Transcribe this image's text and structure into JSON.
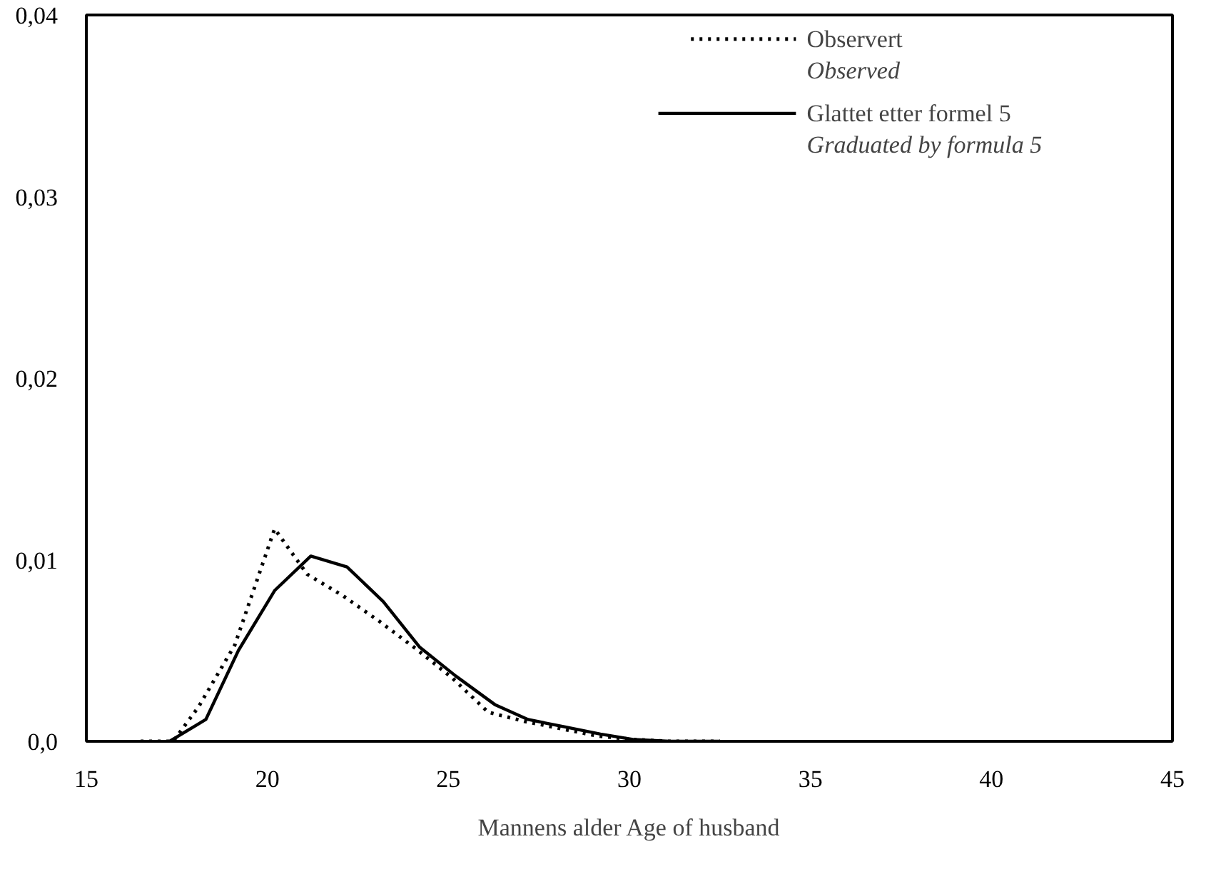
{
  "chart_data": {
    "type": "line",
    "xlabel": "Mannens alder Age of husband",
    "xlim": [
      15,
      45
    ],
    "ylim": [
      0,
      0.04
    ],
    "xticks": [
      15,
      20,
      25,
      30,
      35,
      40,
      45
    ],
    "yticks": [
      {
        "value": 0,
        "label": "0,0"
      },
      {
        "value": 0.01,
        "label": "0,01"
      },
      {
        "value": 0.02,
        "label": "0,02"
      },
      {
        "value": 0.03,
        "label": "0,03"
      },
      {
        "value": 0.04,
        "label": "0,04"
      }
    ],
    "grid": false,
    "legend": "top right",
    "series": [
      {
        "name": "Observert\nObserved",
        "color": "#000000",
        "line_style": "dotted",
        "x": [
          16.5,
          17.4,
          18.1,
          19.1,
          20.2,
          21.1,
          22.1,
          23.1,
          24.1,
          25.1,
          26.1,
          27.1,
          28.1,
          29.1,
          30.1,
          31.1,
          32.5
        ],
        "values": [
          0,
          0,
          0.0019,
          0.0053,
          0.0117,
          0.0092,
          0.008,
          0.0066,
          0.0051,
          0.0035,
          0.0016,
          0.0011,
          0.0007,
          0.0003,
          0.0001,
          0,
          0
        ]
      },
      {
        "name": "Glattet etter formel 5\nGraduated by formula 5",
        "color": "#000000",
        "line_style": "solid",
        "x": [
          17.3,
          18.3,
          19.2,
          20.2,
          21.2,
          22.2,
          23.2,
          24.2,
          25.2,
          26.3,
          27.2,
          28.2,
          29.2,
          30.1,
          31.1,
          32.5
        ],
        "values": [
          0,
          0.0012,
          0.005,
          0.0083,
          0.0102,
          0.0096,
          0.0077,
          0.0052,
          0.0036,
          0.002,
          0.0012,
          0.0008,
          0.0004,
          0.0001,
          0,
          0
        ]
      }
    ]
  }
}
